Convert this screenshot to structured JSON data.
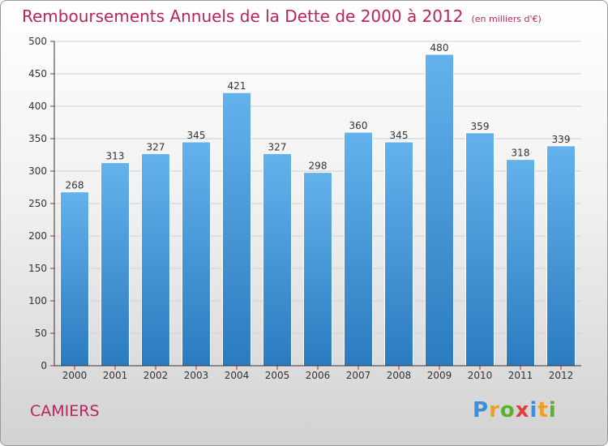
{
  "title": {
    "main": "Remboursements Annuels de la Dette de 2000 à 2012",
    "unit": "(en milliers d'€)"
  },
  "location": "CAMIERS",
  "brand": {
    "text": "Proxiti",
    "letters": [
      "P",
      "r",
      "o",
      "x",
      "i",
      "t",
      "i"
    ],
    "colors": [
      "#3a8fd8",
      "#f0a020",
      "#5bb030",
      "#e04040",
      "#3a8fd8",
      "#f0a020",
      "#5bb030"
    ]
  },
  "chart_data": {
    "type": "bar",
    "title": "Remboursements Annuels de la Dette de 2000 à 2012",
    "categories": [
      "2000",
      "2001",
      "2002",
      "2003",
      "2004",
      "2005",
      "2006",
      "2007",
      "2008",
      "2009",
      "2010",
      "2011",
      "2012"
    ],
    "values": [
      268,
      313,
      327,
      345,
      421,
      327,
      298,
      360,
      345,
      480,
      359,
      318,
      339
    ],
    "data_labels": [
      "268",
      "313",
      "327",
      "345",
      "421",
      "327",
      "298",
      "360",
      "345",
      "480",
      "359",
      "318",
      "339"
    ],
    "yticks": [
      "0",
      "50",
      "100",
      "150",
      "200",
      "250",
      "300",
      "350",
      "400",
      "450",
      "500"
    ],
    "ylim": [
      0,
      500
    ],
    "grid": true,
    "colors": {
      "bar_light": "#64b2ec",
      "bar_dark": "#2a7bc0",
      "grid": "#cfcfcf",
      "axis_tick": "#c2185b"
    }
  }
}
